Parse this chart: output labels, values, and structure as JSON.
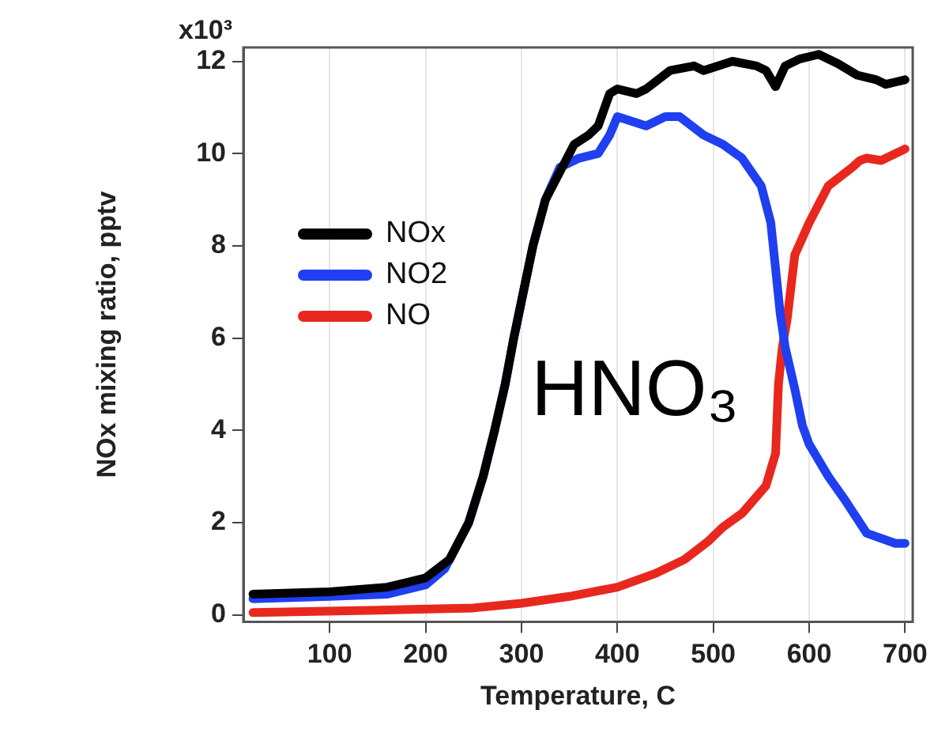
{
  "chart_data": {
    "type": "line",
    "xlabel": "Temperature, C",
    "ylabel": "NOx mixing ratio, pptv",
    "xlim": [
      10,
      708
    ],
    "xticks": [
      100,
      200,
      300,
      400,
      500,
      600,
      700
    ],
    "ylim": [
      -0.15,
      12.3
    ],
    "yticks": [
      0,
      2,
      4,
      6,
      8,
      10,
      12
    ],
    "grid": "x",
    "legend": "top left",
    "marker": "none",
    "line_style": "solid",
    "annotations": [
      "HNO₃",
      "x10³"
    ],
    "series": [
      {
        "name": "NOx",
        "color": "#000000",
        "x": [
          20,
          100,
          160,
          200,
          225,
          245,
          260,
          272,
          283,
          292,
          302,
          312,
          325,
          340,
          355,
          370,
          380,
          392,
          400,
          420,
          430,
          455,
          480,
          490,
          520,
          545,
          555,
          565,
          575,
          590,
          610,
          630,
          650,
          670,
          680,
          690,
          700
        ],
        "values": [
          0.45,
          0.5,
          0.6,
          0.8,
          1.2,
          2,
          3,
          4,
          5,
          6,
          7,
          8,
          9,
          9.6,
          10.2,
          10.4,
          10.6,
          11.3,
          11.4,
          11.3,
          11.4,
          11.8,
          11.9,
          11.8,
          12,
          11.9,
          11.8,
          11.45,
          11.9,
          12.05,
          12.15,
          11.95,
          11.7,
          11.6,
          11.5,
          11.55,
          11.6
        ]
      },
      {
        "name": "NO2",
        "color": "#1f3ff0",
        "x": [
          20,
          100,
          160,
          200,
          220,
          245,
          260,
          272,
          283,
          292,
          302,
          312,
          325,
          340,
          360,
          380,
          392,
          400,
          430,
          450,
          465,
          490,
          510,
          530,
          550,
          560,
          570,
          575,
          585,
          593,
          600,
          620,
          637,
          660,
          690,
          700
        ],
        "values": [
          0.35,
          0.4,
          0.45,
          0.65,
          1,
          2,
          3,
          4,
          5,
          6,
          7,
          8,
          9,
          9.7,
          9.9,
          10,
          10.4,
          10.8,
          10.6,
          10.8,
          10.8,
          10.4,
          10.2,
          9.9,
          9.3,
          8.5,
          6.5,
          5.8,
          4.9,
          4.1,
          3.7,
          3,
          2.5,
          1.77,
          1.55,
          1.55
        ]
      },
      {
        "name": "NO",
        "color": "#e8281e",
        "x": [
          20,
          150,
          250,
          300,
          350,
          400,
          440,
          470,
          495,
          510,
          530,
          555,
          565,
          568,
          572,
          577,
          585,
          600,
          610,
          620,
          645,
          653,
          660,
          675,
          690,
          700
        ],
        "values": [
          0.05,
          0.1,
          0.15,
          0.25,
          0.4,
          0.6,
          0.9,
          1.2,
          1.6,
          1.9,
          2.2,
          2.8,
          3.5,
          5,
          5.8,
          6.4,
          7.8,
          8.5,
          8.9,
          9.3,
          9.7,
          9.85,
          9.9,
          9.85,
          10,
          10.1
        ]
      }
    ]
  }
}
